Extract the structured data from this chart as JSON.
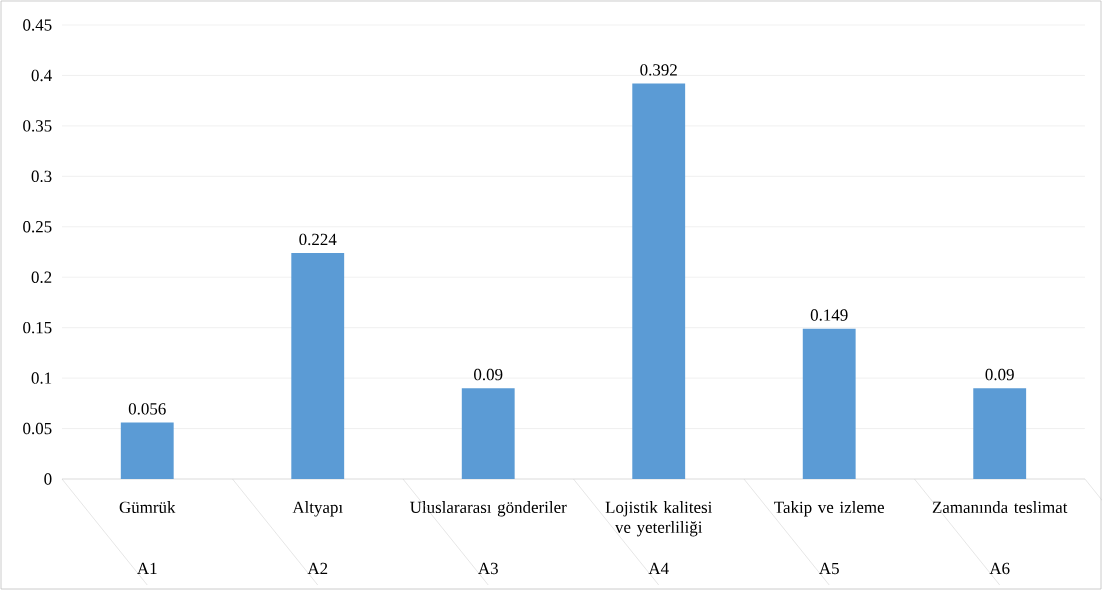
{
  "chart_data": {
    "type": "bar",
    "categories": [
      "Gümrük",
      "Altyapı",
      "Uluslararası gönderiler",
      "Lojistik kalitesi ve yeterliliği",
      "Takip ve izleme",
      "Zamanında teslimat"
    ],
    "values": [
      0.056,
      0.224,
      0.09,
      0.392,
      0.149,
      0.09
    ],
    "color": "#5b9bd5",
    "ylim": [
      0,
      0.45
    ],
    "yticks": [
      0,
      0.05,
      0.1,
      0.15,
      0.2,
      0.25,
      0.3,
      0.35,
      0.4,
      0.45
    ],
    "grid": "y",
    "data_labels": true,
    "annotations": [
      "A1",
      "A2",
      "A3",
      "A4",
      "A5",
      "A6"
    ]
  }
}
